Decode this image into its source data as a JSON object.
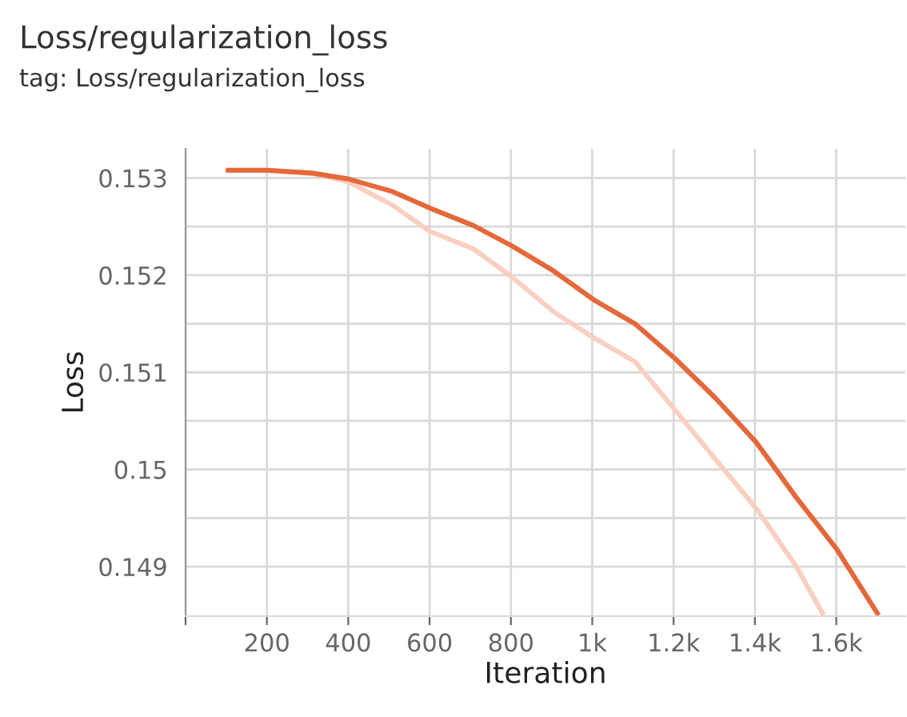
{
  "chart_data": {
    "type": "line",
    "title": "Loss/regularization_loss",
    "subtitle": "tag: Loss/regularization_loss",
    "xlabel": "Iteration",
    "ylabel": "Loss",
    "series": [
      {
        "color": "#f9cfc0",
        "x": [
          105,
          200,
          311,
          400,
          509,
          601,
          708,
          803,
          906,
          1006,
          1105,
          1204,
          1304,
          1403,
          1502,
          1566
        ],
        "values": [
          0.15308,
          0.15308,
          0.15305,
          0.15296,
          0.15272,
          0.15245,
          0.15227,
          0.15198,
          0.15162,
          0.15135,
          0.15111,
          0.15061,
          0.1501,
          0.1496,
          0.149,
          0.14852
        ]
      },
      {
        "color": "#e5683a",
        "x": [
          105,
          200,
          311,
          400,
          509,
          601,
          708,
          803,
          906,
          1006,
          1105,
          1204,
          1304,
          1403,
          1502,
          1601,
          1701
        ],
        "values": [
          0.15308,
          0.15308,
          0.15305,
          0.15299,
          0.15286,
          0.15269,
          0.15251,
          0.1523,
          0.15204,
          0.15174,
          0.1515,
          0.15114,
          0.15073,
          0.15028,
          0.14971,
          0.14918,
          0.14852
        ]
      }
    ],
    "xlim": [
      0,
      1770
    ],
    "ylim": [
      0.14849,
      0.1533
    ],
    "xticks": [
      {
        "value": 0,
        "label": null
      },
      200,
      400,
      600,
      800,
      {
        "value": 1000,
        "label": "1k"
      },
      {
        "value": 1200,
        "label": "1.2k"
      },
      {
        "value": 1400,
        "label": "1.4k"
      },
      {
        "value": 1600,
        "label": "1.6k"
      }
    ],
    "yticks": [
      0.149,
      {
        "value": 0.1495,
        "label": null
      },
      0.15,
      {
        "value": 0.1505,
        "label": null
      },
      0.151,
      {
        "value": 0.1515,
        "label": null
      },
      0.152,
      {
        "value": 0.1525,
        "label": null
      },
      0.153
    ],
    "grid": true,
    "marker": "none",
    "line_style": "solid"
  }
}
